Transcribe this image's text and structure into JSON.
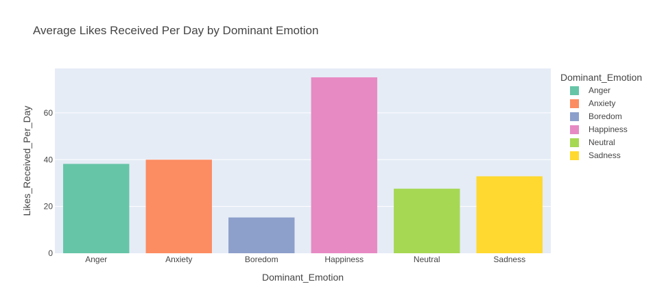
{
  "chart_data": {
    "type": "bar",
    "title": "Average Likes Received Per Day by Dominant Emotion",
    "xlabel": "Dominant_Emotion",
    "ylabel": "Likes_Received_Per_Day",
    "categories": [
      "Anger",
      "Anxiety",
      "Boredom",
      "Happiness",
      "Neutral",
      "Sadness"
    ],
    "values": [
      38.2,
      40.0,
      15.3,
      75.2,
      27.6,
      32.9
    ],
    "colors": [
      "#66c5a7",
      "#fc8c62",
      "#8da0cb",
      "#e78ac3",
      "#a6d854",
      "#ffd92f"
    ],
    "ylim": [
      0,
      79
    ],
    "yticks": [
      0,
      20,
      40,
      60
    ],
    "grid": true,
    "legend": {
      "title": "Dominant_Emotion",
      "placement": "right",
      "entries": [
        "Anger",
        "Anxiety",
        "Boredom",
        "Happiness",
        "Neutral",
        "Sadness"
      ]
    }
  }
}
